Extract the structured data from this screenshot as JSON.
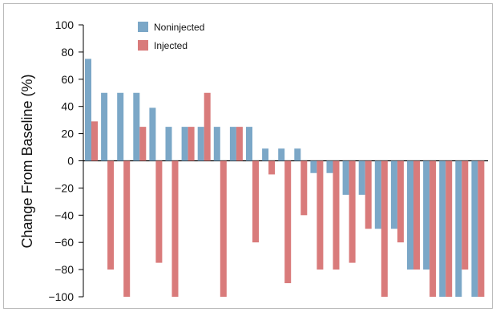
{
  "chart_data": {
    "type": "bar",
    "title": "",
    "xlabel": "",
    "ylabel": "Change From Baseline (%)",
    "ylim": [
      -100,
      100
    ],
    "yticks": [
      100,
      80,
      60,
      40,
      20,
      0,
      -20,
      -40,
      -60,
      -80,
      -100
    ],
    "ytick_labels": [
      "100",
      "80",
      "60",
      "40",
      "20",
      "0",
      "−20",
      "−40",
      "−60",
      "−80",
      "−100"
    ],
    "grid": false,
    "legend_position": "top-left",
    "series": [
      {
        "name": "Noninjected",
        "color": "#7ba7c7",
        "values": [
          75,
          50,
          50,
          50,
          39,
          25,
          25,
          25,
          25,
          25,
          25,
          9,
          9,
          9,
          -9,
          -9,
          -25,
          -25,
          -50,
          -50,
          -80,
          -80,
          -100,
          -100,
          -100
        ]
      },
      {
        "name": "Injected",
        "color": "#d97b7b",
        "values": [
          29,
          -80,
          -100,
          25,
          -75,
          -100,
          25,
          50,
          -100,
          25,
          -60,
          -10,
          -90,
          -40,
          -80,
          -80,
          -75,
          -50,
          -100,
          -60,
          -80,
          -100,
          -100,
          -80,
          -100
        ]
      }
    ]
  }
}
